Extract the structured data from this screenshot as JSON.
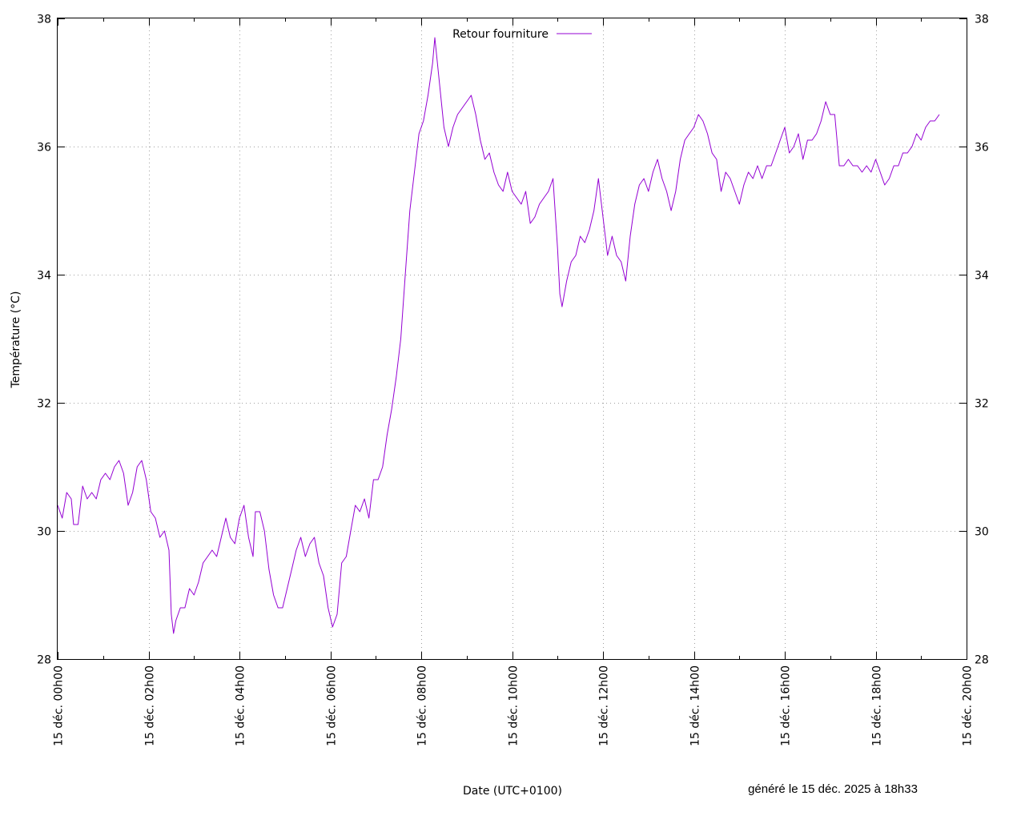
{
  "chart_data": {
    "type": "line",
    "title": "",
    "xlabel": "Date (UTC+0100)",
    "ylabel": "Température (°C)",
    "footer": "généré le 15 déc. 2025 à 18h33",
    "x_unit": "hours since 15 déc. 00h00",
    "xlim": [
      0,
      20
    ],
    "ylim": [
      28,
      38
    ],
    "x_ticks": [
      0,
      2,
      4,
      6,
      8,
      10,
      12,
      14,
      16,
      18,
      20
    ],
    "x_tick_labels": [
      "15 déc. 00h00",
      "15 déc. 02h00",
      "15 déc. 04h00",
      "15 déc. 06h00",
      "15 déc. 08h00",
      "15 déc. 10h00",
      "15 déc. 12h00",
      "15 déc. 14h00",
      "15 déc. 16h00",
      "15 déc. 18h00",
      "15 déc. 20h00"
    ],
    "y_ticks": [
      28,
      30,
      32,
      34,
      36,
      38
    ],
    "y_tick_labels": [
      "28",
      "30",
      "32",
      "34",
      "36",
      "38"
    ],
    "grid": true,
    "legend_position": "top-center",
    "series": [
      {
        "name": "Retour fourniture",
        "color": "#9400d3",
        "points": [
          [
            0.0,
            30.4
          ],
          [
            0.1,
            30.2
          ],
          [
            0.2,
            30.6
          ],
          [
            0.3,
            30.5
          ],
          [
            0.35,
            30.1
          ],
          [
            0.45,
            30.1
          ],
          [
            0.55,
            30.7
          ],
          [
            0.65,
            30.5
          ],
          [
            0.75,
            30.6
          ],
          [
            0.85,
            30.5
          ],
          [
            0.95,
            30.8
          ],
          [
            1.05,
            30.9
          ],
          [
            1.15,
            30.8
          ],
          [
            1.25,
            31.0
          ],
          [
            1.35,
            31.1
          ],
          [
            1.45,
            30.9
          ],
          [
            1.55,
            30.4
          ],
          [
            1.65,
            30.6
          ],
          [
            1.75,
            31.0
          ],
          [
            1.85,
            31.1
          ],
          [
            1.95,
            30.8
          ],
          [
            2.05,
            30.3
          ],
          [
            2.15,
            30.2
          ],
          [
            2.25,
            29.9
          ],
          [
            2.35,
            30.0
          ],
          [
            2.45,
            29.7
          ],
          [
            2.5,
            28.7
          ],
          [
            2.55,
            28.4
          ],
          [
            2.6,
            28.6
          ],
          [
            2.7,
            28.8
          ],
          [
            2.8,
            28.8
          ],
          [
            2.9,
            29.1
          ],
          [
            3.0,
            29.0
          ],
          [
            3.1,
            29.2
          ],
          [
            3.2,
            29.5
          ],
          [
            3.3,
            29.6
          ],
          [
            3.4,
            29.7
          ],
          [
            3.5,
            29.6
          ],
          [
            3.6,
            29.9
          ],
          [
            3.7,
            30.2
          ],
          [
            3.8,
            29.9
          ],
          [
            3.9,
            29.8
          ],
          [
            4.0,
            30.2
          ],
          [
            4.1,
            30.4
          ],
          [
            4.2,
            29.9
          ],
          [
            4.3,
            29.6
          ],
          [
            4.35,
            30.3
          ],
          [
            4.45,
            30.3
          ],
          [
            4.55,
            30.0
          ],
          [
            4.65,
            29.4
          ],
          [
            4.75,
            29.0
          ],
          [
            4.85,
            28.8
          ],
          [
            4.95,
            28.8
          ],
          [
            5.05,
            29.1
          ],
          [
            5.15,
            29.4
          ],
          [
            5.25,
            29.7
          ],
          [
            5.35,
            29.9
          ],
          [
            5.45,
            29.6
          ],
          [
            5.55,
            29.8
          ],
          [
            5.65,
            29.9
          ],
          [
            5.75,
            29.5
          ],
          [
            5.85,
            29.3
          ],
          [
            5.95,
            28.8
          ],
          [
            6.05,
            28.5
          ],
          [
            6.15,
            28.7
          ],
          [
            6.25,
            29.5
          ],
          [
            6.35,
            29.6
          ],
          [
            6.45,
            30.0
          ],
          [
            6.55,
            30.4
          ],
          [
            6.65,
            30.3
          ],
          [
            6.75,
            30.5
          ],
          [
            6.85,
            30.2
          ],
          [
            6.95,
            30.8
          ],
          [
            7.05,
            30.8
          ],
          [
            7.15,
            31.0
          ],
          [
            7.25,
            31.5
          ],
          [
            7.35,
            31.9
          ],
          [
            7.45,
            32.4
          ],
          [
            7.55,
            33.0
          ],
          [
            7.65,
            34.0
          ],
          [
            7.75,
            35.0
          ],
          [
            7.85,
            35.6
          ],
          [
            7.95,
            36.2
          ],
          [
            8.05,
            36.4
          ],
          [
            8.15,
            36.8
          ],
          [
            8.25,
            37.3
          ],
          [
            8.3,
            37.7
          ],
          [
            8.4,
            37.0
          ],
          [
            8.5,
            36.3
          ],
          [
            8.6,
            36.0
          ],
          [
            8.7,
            36.3
          ],
          [
            8.8,
            36.5
          ],
          [
            8.9,
            36.6
          ],
          [
            9.0,
            36.7
          ],
          [
            9.1,
            36.8
          ],
          [
            9.2,
            36.5
          ],
          [
            9.3,
            36.1
          ],
          [
            9.4,
            35.8
          ],
          [
            9.5,
            35.9
          ],
          [
            9.6,
            35.6
          ],
          [
            9.7,
            35.4
          ],
          [
            9.8,
            35.3
          ],
          [
            9.9,
            35.6
          ],
          [
            10.0,
            35.3
          ],
          [
            10.1,
            35.2
          ],
          [
            10.2,
            35.1
          ],
          [
            10.3,
            35.3
          ],
          [
            10.4,
            34.8
          ],
          [
            10.5,
            34.9
          ],
          [
            10.6,
            35.1
          ],
          [
            10.7,
            35.2
          ],
          [
            10.8,
            35.3
          ],
          [
            10.9,
            35.5
          ],
          [
            11.0,
            34.4
          ],
          [
            11.05,
            33.7
          ],
          [
            11.1,
            33.5
          ],
          [
            11.2,
            33.9
          ],
          [
            11.3,
            34.2
          ],
          [
            11.4,
            34.3
          ],
          [
            11.5,
            34.6
          ],
          [
            11.6,
            34.5
          ],
          [
            11.7,
            34.7
          ],
          [
            11.8,
            35.0
          ],
          [
            11.9,
            35.5
          ],
          [
            12.0,
            34.9
          ],
          [
            12.1,
            34.3
          ],
          [
            12.2,
            34.6
          ],
          [
            12.3,
            34.3
          ],
          [
            12.4,
            34.2
          ],
          [
            12.5,
            33.9
          ],
          [
            12.6,
            34.6
          ],
          [
            12.7,
            35.1
          ],
          [
            12.8,
            35.4
          ],
          [
            12.9,
            35.5
          ],
          [
            13.0,
            35.3
          ],
          [
            13.1,
            35.6
          ],
          [
            13.2,
            35.8
          ],
          [
            13.3,
            35.5
          ],
          [
            13.4,
            35.3
          ],
          [
            13.5,
            35.0
          ],
          [
            13.6,
            35.3
          ],
          [
            13.7,
            35.8
          ],
          [
            13.8,
            36.1
          ],
          [
            13.9,
            36.2
          ],
          [
            14.0,
            36.3
          ],
          [
            14.1,
            36.5
          ],
          [
            14.2,
            36.4
          ],
          [
            14.3,
            36.2
          ],
          [
            14.4,
            35.9
          ],
          [
            14.5,
            35.8
          ],
          [
            14.6,
            35.3
          ],
          [
            14.7,
            35.6
          ],
          [
            14.8,
            35.5
          ],
          [
            14.9,
            35.3
          ],
          [
            15.0,
            35.1
          ],
          [
            15.1,
            35.4
          ],
          [
            15.2,
            35.6
          ],
          [
            15.3,
            35.5
          ],
          [
            15.4,
            35.7
          ],
          [
            15.5,
            35.5
          ],
          [
            15.6,
            35.7
          ],
          [
            15.7,
            35.7
          ],
          [
            15.8,
            35.9
          ],
          [
            15.9,
            36.1
          ],
          [
            16.0,
            36.3
          ],
          [
            16.1,
            35.9
          ],
          [
            16.2,
            36.0
          ],
          [
            16.3,
            36.2
          ],
          [
            16.4,
            35.8
          ],
          [
            16.5,
            36.1
          ],
          [
            16.6,
            36.1
          ],
          [
            16.7,
            36.2
          ],
          [
            16.8,
            36.4
          ],
          [
            16.9,
            36.7
          ],
          [
            17.0,
            36.5
          ],
          [
            17.1,
            36.5
          ],
          [
            17.2,
            35.7
          ],
          [
            17.3,
            35.7
          ],
          [
            17.4,
            35.8
          ],
          [
            17.5,
            35.7
          ],
          [
            17.6,
            35.7
          ],
          [
            17.7,
            35.6
          ],
          [
            17.8,
            35.7
          ],
          [
            17.9,
            35.6
          ],
          [
            18.0,
            35.8
          ],
          [
            18.1,
            35.6
          ],
          [
            18.2,
            35.4
          ],
          [
            18.3,
            35.5
          ],
          [
            18.4,
            35.7
          ],
          [
            18.5,
            35.7
          ],
          [
            18.6,
            35.9
          ],
          [
            18.7,
            35.9
          ],
          [
            18.8,
            36.0
          ],
          [
            18.9,
            36.2
          ],
          [
            19.0,
            36.1
          ],
          [
            19.1,
            36.3
          ],
          [
            19.2,
            36.4
          ],
          [
            19.3,
            36.4
          ],
          [
            19.4,
            36.5
          ]
        ]
      }
    ]
  }
}
